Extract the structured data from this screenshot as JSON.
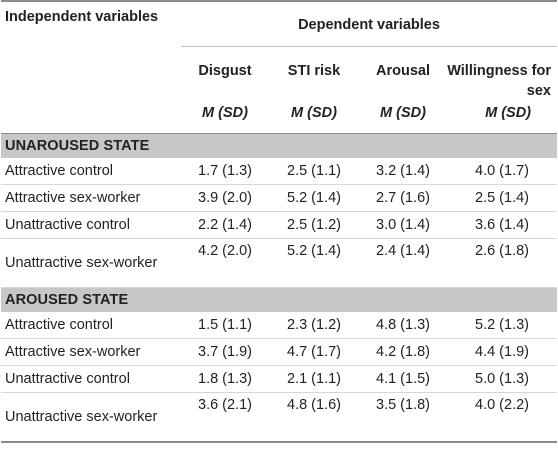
{
  "header": {
    "independent_variables": "Independent variables",
    "dependent_variables": "Dependent variables",
    "columns": [
      {
        "name": "Disgust",
        "stat": "M",
        "stat_sd": "(SD)"
      },
      {
        "name": "STI risk",
        "stat": "M",
        "stat_sd": "(SD)"
      },
      {
        "name": "Arousal",
        "stat": "M",
        "stat_sd": "(SD)"
      },
      {
        "name": "Willingness for sex",
        "stat": "M",
        "stat_sd": "(SD)"
      }
    ]
  },
  "sections": [
    {
      "title": "UNAROUSED STATE",
      "rows": [
        {
          "label": "Attractive control",
          "values": [
            "1.7 (1.3)",
            "2.5 (1.1)",
            "3.2 (1.4)",
            "4.0 (1.7)"
          ]
        },
        {
          "label": "Attractive sex-worker",
          "values": [
            "3.9 (2.0)",
            "5.2 (1.4)",
            "2.7 (1.6)",
            "2.5 (1.4)"
          ]
        },
        {
          "label": "Unattractive control",
          "values": [
            "2.2 (1.4)",
            "2.5 (1.2)",
            "3.0 (1.4)",
            "3.6 (1.4)"
          ]
        },
        {
          "label": "Unattractive sex-worker",
          "values": [
            "4.2 (2.0)",
            "5.2 (1.4)",
            "2.4 (1.4)",
            "2.6 (1.8)"
          ]
        }
      ]
    },
    {
      "title": "AROUSED STATE",
      "rows": [
        {
          "label": "Attractive control",
          "values": [
            "1.5 (1.1)",
            "2.3 (1.2)",
            "4.8 (1.3)",
            "5.2 (1.3)"
          ]
        },
        {
          "label": "Attractive sex-worker",
          "values": [
            "3.7 (1.9)",
            "4.7 (1.7)",
            "4.2 (1.8)",
            "4.4 (1.9)"
          ]
        },
        {
          "label": "Unattractive control",
          "values": [
            "1.8 (1.3)",
            "2.1 (1.1)",
            "4.1 (1.5)",
            "5.0 (1.3)"
          ]
        },
        {
          "label": "Unattractive sex-worker",
          "values": [
            "3.6 (2.1)",
            "4.8 (1.6)",
            "3.5 (1.8)",
            "4.0 (2.2)"
          ]
        }
      ]
    }
  ]
}
